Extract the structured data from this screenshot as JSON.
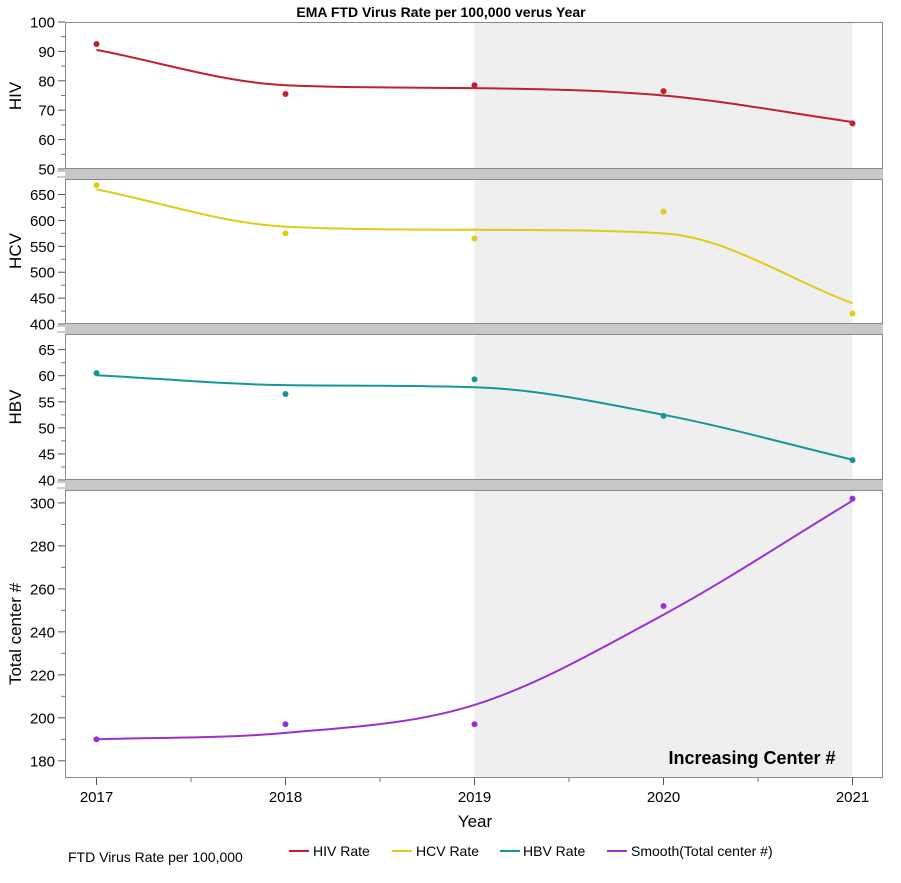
{
  "chart_data": {
    "type": "line",
    "title": "EMA FTD Virus Rate per 100,000 verus Year",
    "xlabel": "Year",
    "x": [
      2017,
      2018,
      2019,
      2020,
      2021
    ],
    "x_ticks": [
      "2017",
      "2018",
      "2019",
      "2020",
      "2021"
    ],
    "shaded_range": [
      2019,
      2021
    ],
    "annotation": "Increasing Center #",
    "panels": [
      {
        "ylabel": "HIV",
        "ylim": [
          50,
          100
        ],
        "yticks": [
          50,
          60,
          70,
          80,
          90,
          100
        ],
        "series": [
          {
            "name": "HIV Rate",
            "color": "#c0202f",
            "points": [
              92.5,
              75.5,
              78.5,
              76.5,
              65.5
            ],
            "smooth": [
              90.5,
              78.5,
              77.5,
              75.0,
              66.0
            ]
          }
        ]
      },
      {
        "ylabel": "HCV",
        "ylim": [
          400,
          680
        ],
        "yticks": [
          400,
          450,
          500,
          550,
          600,
          650
        ],
        "series": [
          {
            "name": "HCV Rate",
            "color": "#e0cc18",
            "points": [
              668,
              575,
              565,
              617,
              420
            ],
            "smooth": [
              660,
              588,
              582,
              575,
              440
            ]
          }
        ]
      },
      {
        "ylabel": "HBV",
        "ylim": [
          40,
          68
        ],
        "yticks": [
          40,
          45,
          50,
          55,
          60,
          65
        ],
        "series": [
          {
            "name": "HBV Rate",
            "color": "#17969a",
            "points": [
              60.5,
              56.5,
              59.3,
              52.3,
              43.8
            ],
            "smooth": [
              60.1,
              58.2,
              57.8,
              52.5,
              43.9
            ]
          }
        ]
      },
      {
        "ylabel": "Total center #",
        "ylim": [
          172,
          306
        ],
        "yticks": [
          180,
          200,
          220,
          240,
          260,
          280,
          300
        ],
        "series": [
          {
            "name": "Smooth(Total center #)",
            "color": "#9b30d0",
            "points": [
              190,
              197,
              197,
              252,
              302
            ],
            "smooth": [
              190,
              193,
              206,
              248,
              301
            ]
          }
        ]
      }
    ],
    "legend": {
      "title": "FTD Virus Rate per 100,000",
      "items": [
        {
          "label": "HIV Rate",
          "color": "#c0202f"
        },
        {
          "label": "HCV Rate",
          "color": "#e0cc18"
        },
        {
          "label": "HBV Rate",
          "color": "#17969a"
        },
        {
          "label": "Smooth(Total center #)",
          "color": "#9b30d0"
        }
      ]
    }
  }
}
